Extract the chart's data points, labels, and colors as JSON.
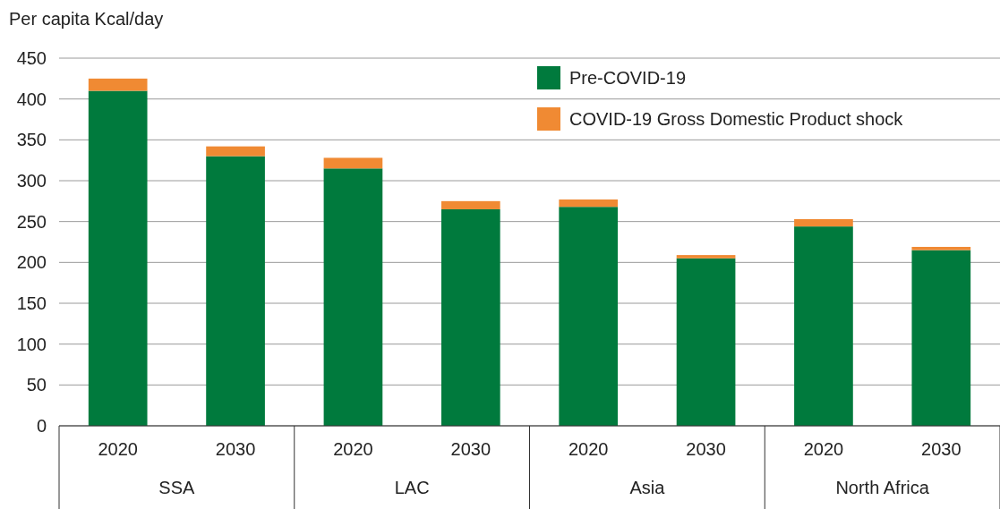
{
  "chart_data": {
    "type": "bar",
    "ylabel": "Per capita Kcal/day",
    "categories": [
      "2020",
      "2030",
      "2020",
      "2030",
      "2020",
      "2030",
      "2020",
      "2030"
    ],
    "annotations": [
      "SSA",
      "LAC",
      "Asia",
      "North Africa"
    ],
    "stacked": true,
    "series": [
      {
        "name": "Pre-COVID-19",
        "color": "#007a3d",
        "values": [
          410,
          330,
          315,
          265,
          268,
          205,
          244,
          215
        ]
      },
      {
        "name": "COVID-19 Gross Domestic Product shock",
        "color": "#f08a33",
        "values": [
          15,
          12,
          13,
          10,
          9,
          4,
          9,
          4
        ]
      }
    ],
    "ylim": [
      0,
      450
    ],
    "yticks": [
      0,
      50,
      100,
      150,
      200,
      250,
      300,
      350,
      400,
      450
    ],
    "grid": "y",
    "legend": "top right"
  }
}
